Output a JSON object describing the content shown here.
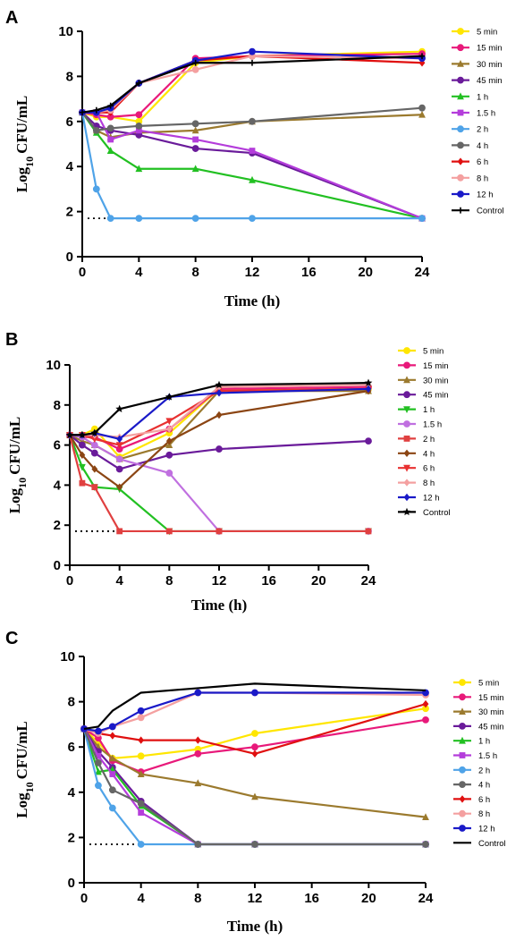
{
  "chart_data": [
    {
      "panel": "A",
      "type": "line",
      "xlabel": "Time (h)",
      "ylabel": "Log10 CFU/mL",
      "xlim": [
        0,
        24
      ],
      "ylim": [
        0,
        10
      ],
      "xticks": [
        0,
        4,
        8,
        12,
        16,
        20,
        24
      ],
      "yticks": [
        0,
        2,
        4,
        6,
        8,
        10
      ],
      "detection_limit": {
        "y": 1.7,
        "x_end": 2,
        "style": "dotted"
      },
      "legend_position": "right",
      "series": [
        {
          "name": "5 min",
          "color": "#ffe600",
          "marker": "circle",
          "x": [
            0,
            1,
            2,
            4,
            8,
            12,
            24
          ],
          "y": [
            6.4,
            6.2,
            6.2,
            6.0,
            8.6,
            8.9,
            9.1
          ]
        },
        {
          "name": "15 min",
          "color": "#e8197a",
          "marker": "circle",
          "x": [
            0,
            1,
            2,
            4,
            8,
            12,
            24
          ],
          "y": [
            6.4,
            6.3,
            6.2,
            6.3,
            8.8,
            8.9,
            9.0
          ]
        },
        {
          "name": "30 min",
          "color": "#9b7a2e",
          "marker": "triangle",
          "x": [
            0,
            1,
            2,
            4,
            8,
            12,
            24
          ],
          "y": [
            6.4,
            5.6,
            5.3,
            5.5,
            5.6,
            6.0,
            6.3
          ]
        },
        {
          "name": "45 min",
          "color": "#6a1b9a",
          "marker": "circle",
          "x": [
            0,
            1,
            2,
            4,
            8,
            12,
            24
          ],
          "y": [
            6.4,
            5.8,
            5.6,
            5.4,
            4.8,
            4.6,
            1.7
          ]
        },
        {
          "name": "1 h",
          "color": "#22c022",
          "marker": "triangle",
          "x": [
            0,
            1,
            2,
            4,
            8,
            12,
            24
          ],
          "y": [
            6.4,
            5.5,
            4.7,
            3.9,
            3.9,
            3.4,
            1.7
          ]
        },
        {
          "name": "1.5 h",
          "color": "#b43ddb",
          "marker": "square",
          "x": [
            0,
            1,
            2,
            4,
            8,
            12,
            24
          ],
          "y": [
            6.4,
            6.4,
            5.2,
            5.6,
            5.2,
            4.7,
            1.7
          ]
        },
        {
          "name": "2 h",
          "color": "#4fa3e8",
          "marker": "circle",
          "x": [
            0,
            1,
            2,
            4,
            8,
            12,
            24
          ],
          "y": [
            6.4,
            3.0,
            1.7,
            1.7,
            1.7,
            1.7,
            1.7
          ]
        },
        {
          "name": "4 h",
          "color": "#666666",
          "marker": "circle",
          "x": [
            0,
            1,
            2,
            4,
            8,
            12,
            24
          ],
          "y": [
            6.4,
            5.6,
            5.7,
            5.8,
            5.9,
            6.0,
            6.6
          ]
        },
        {
          "name": "6 h",
          "color": "#e01010",
          "marker": "diamond",
          "x": [
            0,
            1,
            2,
            4,
            8,
            12,
            24
          ],
          "y": [
            6.4,
            6.4,
            6.4,
            7.7,
            8.7,
            8.9,
            8.6
          ]
        },
        {
          "name": "8 h",
          "color": "#f4a0a0",
          "marker": "circle",
          "x": [
            0,
            1,
            2,
            4,
            8,
            12,
            24
          ],
          "y": [
            6.4,
            6.4,
            6.5,
            7.7,
            8.3,
            8.9,
            8.8
          ]
        },
        {
          "name": "12 h",
          "color": "#1a1ac8",
          "marker": "circle",
          "x": [
            0,
            1,
            2,
            4,
            8,
            12,
            24
          ],
          "y": [
            6.4,
            6.4,
            6.6,
            7.7,
            8.7,
            9.1,
            8.8
          ]
        },
        {
          "name": "Control",
          "color": "#000000",
          "marker": "plus",
          "x": [
            0,
            1,
            2,
            4,
            8,
            12,
            24
          ],
          "y": [
            6.4,
            6.5,
            6.7,
            7.7,
            8.6,
            8.6,
            8.9
          ]
        }
      ]
    },
    {
      "panel": "B",
      "type": "line",
      "xlabel": "Time (h)",
      "ylabel": "Log10 CFU/mL",
      "xlim": [
        0,
        24
      ],
      "ylim": [
        0,
        10
      ],
      "xticks": [
        0,
        4,
        8,
        12,
        16,
        20,
        24
      ],
      "yticks": [
        0,
        2,
        4,
        6,
        8,
        10
      ],
      "detection_limit": {
        "y": 1.7,
        "x_end": 4,
        "style": "dotted"
      },
      "legend_position": "right",
      "series": [
        {
          "name": "5 min",
          "color": "#ffe600",
          "marker": "circle",
          "x": [
            0,
            1,
            2,
            4,
            8,
            12,
            24
          ],
          "y": [
            6.5,
            6.5,
            6.8,
            5.4,
            6.6,
            8.8,
            8.8
          ]
        },
        {
          "name": "15 min",
          "color": "#e8197a",
          "marker": "circle",
          "x": [
            0,
            1,
            2,
            4,
            8,
            12,
            24
          ],
          "y": [
            6.5,
            6.4,
            6.4,
            5.8,
            6.8,
            8.8,
            8.9
          ]
        },
        {
          "name": "30 min",
          "color": "#9b7a2e",
          "marker": "triangle",
          "x": [
            0,
            1,
            2,
            4,
            8,
            12,
            24
          ],
          "y": [
            6.5,
            6.2,
            6.0,
            5.3,
            6.0,
            8.7,
            8.7
          ]
        },
        {
          "name": "45 min",
          "color": "#6a1b9a",
          "marker": "circle",
          "x": [
            0,
            1,
            2,
            4,
            8,
            12,
            24
          ],
          "y": [
            6.5,
            6.0,
            5.6,
            4.8,
            5.5,
            5.8,
            6.2
          ]
        },
        {
          "name": "1 h",
          "color": "#22c022",
          "marker": "tri-down",
          "x": [
            0,
            1,
            2,
            4,
            8,
            12,
            24
          ],
          "y": [
            6.5,
            4.9,
            3.9,
            3.8,
            1.7,
            1.7,
            1.7
          ]
        },
        {
          "name": "1.5 h",
          "color": "#c070e0",
          "marker": "circle",
          "x": [
            0,
            1,
            2,
            4,
            8,
            12,
            24
          ],
          "y": [
            6.5,
            6.4,
            6.0,
            5.3,
            4.6,
            1.7,
            1.7
          ]
        },
        {
          "name": "2 h",
          "color": "#e04040",
          "marker": "square",
          "x": [
            0,
            1,
            2,
            4,
            8,
            12,
            24
          ],
          "y": [
            6.5,
            4.1,
            3.9,
            1.7,
            1.7,
            1.7,
            1.7
          ]
        },
        {
          "name": "4 h",
          "color": "#8b4513",
          "marker": "diamond",
          "x": [
            0,
            1,
            2,
            4,
            8,
            12,
            24
          ],
          "y": [
            6.5,
            5.5,
            4.8,
            3.9,
            6.2,
            7.5,
            8.7
          ]
        },
        {
          "name": "6 h",
          "color": "#e83030",
          "marker": "tri-down",
          "x": [
            0,
            1,
            2,
            4,
            8,
            12,
            24
          ],
          "y": [
            6.5,
            6.5,
            6.3,
            6.0,
            7.2,
            8.7,
            8.8
          ]
        },
        {
          "name": "8 h",
          "color": "#f4a0a0",
          "marker": "diamond",
          "x": [
            0,
            1,
            2,
            4,
            8,
            12,
            24
          ],
          "y": [
            6.5,
            6.5,
            6.5,
            6.4,
            6.8,
            8.9,
            9.0
          ]
        },
        {
          "name": "12 h",
          "color": "#1a1ac8",
          "marker": "diamond",
          "x": [
            0,
            1,
            2,
            4,
            8,
            12,
            24
          ],
          "y": [
            6.5,
            6.5,
            6.6,
            6.3,
            8.4,
            8.6,
            8.8
          ]
        },
        {
          "name": "Control",
          "color": "#000000",
          "marker": "star",
          "x": [
            0,
            1,
            2,
            4,
            8,
            12,
            24
          ],
          "y": [
            6.5,
            6.5,
            6.6,
            7.8,
            8.4,
            9.0,
            9.1
          ]
        }
      ]
    },
    {
      "panel": "C",
      "type": "line",
      "xlabel": "Time (h)",
      "ylabel": "Log10 CFU/mL",
      "xlim": [
        0,
        24
      ],
      "ylim": [
        0,
        10
      ],
      "xticks": [
        0,
        4,
        8,
        12,
        16,
        20,
        24
      ],
      "yticks": [
        0,
        2,
        4,
        6,
        8,
        10
      ],
      "detection_limit": {
        "y": 1.7,
        "x_end": 4,
        "style": "dotted"
      },
      "legend_position": "right",
      "series": [
        {
          "name": "5 min",
          "color": "#ffe600",
          "marker": "circle",
          "x": [
            0,
            1,
            2,
            4,
            8,
            12,
            24
          ],
          "y": [
            6.8,
            6.2,
            5.5,
            5.6,
            5.9,
            6.6,
            7.7
          ]
        },
        {
          "name": "15 min",
          "color": "#e8197a",
          "marker": "circle",
          "x": [
            0,
            1,
            2,
            4,
            8,
            12,
            24
          ],
          "y": [
            6.8,
            6.4,
            5.4,
            4.9,
            5.7,
            6.0,
            7.2
          ]
        },
        {
          "name": "30 min",
          "color": "#9b7a2e",
          "marker": "triangle",
          "x": [
            0,
            1,
            2,
            4,
            8,
            12,
            24
          ],
          "y": [
            6.8,
            6.0,
            5.5,
            4.8,
            4.4,
            3.8,
            2.9
          ]
        },
        {
          "name": "45 min",
          "color": "#6a1b9a",
          "marker": "circle",
          "x": [
            0,
            1,
            2,
            4,
            8,
            12,
            24
          ],
          "y": [
            6.8,
            5.8,
            5.1,
            3.6,
            1.7,
            1.7,
            1.7
          ]
        },
        {
          "name": "1 h",
          "color": "#22c022",
          "marker": "triangle",
          "x": [
            0,
            1,
            2,
            4,
            8,
            12,
            24
          ],
          "y": [
            6.8,
            4.9,
            5.0,
            3.4,
            1.7,
            1.7,
            1.7
          ]
        },
        {
          "name": "1.5 h",
          "color": "#b43ddb",
          "marker": "square",
          "x": [
            0,
            1,
            2,
            4,
            8,
            12,
            24
          ],
          "y": [
            6.8,
            5.6,
            4.8,
            3.1,
            1.7,
            1.7,
            1.7
          ]
        },
        {
          "name": "2 h",
          "color": "#4fa3e8",
          "marker": "circle",
          "x": [
            0,
            1,
            2,
            4,
            8,
            12,
            24
          ],
          "y": [
            6.8,
            4.3,
            3.3,
            1.7,
            1.7,
            1.7,
            1.7
          ]
        },
        {
          "name": "4 h",
          "color": "#666666",
          "marker": "circle",
          "x": [
            0,
            1,
            2,
            4,
            8,
            12,
            24
          ],
          "y": [
            6.8,
            5.3,
            4.1,
            3.5,
            1.7,
            1.7,
            1.7
          ]
        },
        {
          "name": "6 h",
          "color": "#e01010",
          "marker": "diamond",
          "x": [
            0,
            1,
            2,
            4,
            8,
            12,
            24
          ],
          "y": [
            6.8,
            6.6,
            6.5,
            6.3,
            6.3,
            5.7,
            7.9
          ]
        },
        {
          "name": "8 h",
          "color": "#f4a0a0",
          "marker": "circle",
          "x": [
            0,
            1,
            2,
            4,
            8,
            12,
            24
          ],
          "y": [
            6.8,
            6.6,
            6.9,
            7.3,
            8.4,
            8.4,
            8.3
          ]
        },
        {
          "name": "12 h",
          "color": "#1a1ac8",
          "marker": "circle",
          "x": [
            0,
            1,
            2,
            4,
            8,
            12,
            24
          ],
          "y": [
            6.8,
            6.7,
            6.9,
            7.6,
            8.4,
            8.4,
            8.4
          ]
        },
        {
          "name": "Control",
          "color": "#000000",
          "marker": "none",
          "x": [
            0,
            1,
            2,
            4,
            8,
            12,
            24
          ],
          "y": [
            6.8,
            6.9,
            7.6,
            8.4,
            8.6,
            8.8,
            8.5
          ]
        }
      ]
    }
  ]
}
